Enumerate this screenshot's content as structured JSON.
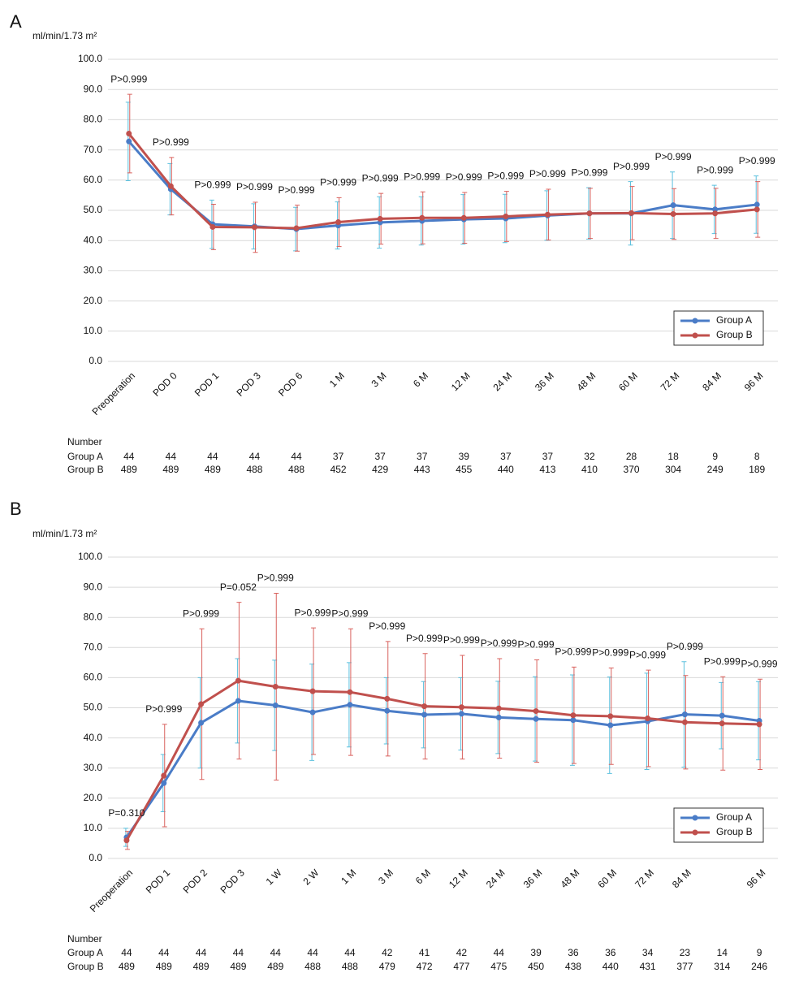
{
  "chart_data": [
    {
      "type": "line",
      "panel": "A",
      "y_label": "ml/min/1.73 m²",
      "categories": [
        "Preoperation",
        "POD 0",
        "POD 1",
        "POD 3",
        "POD 6",
        "1 M",
        "3 M",
        "6 M",
        "12 M",
        "24 M",
        "36 M",
        "48 M",
        "60 M",
        "72 M",
        "84 M",
        "96 M"
      ],
      "series": [
        {
          "name": "Group A",
          "color": "#4a7cc7",
          "error_color": "#5bc0de",
          "values": [
            72.8,
            57.0,
            45.4,
            44.7,
            43.8,
            45.0,
            46.0,
            46.5,
            47.0,
            47.3,
            48.3,
            49.0,
            49.0,
            51.7,
            50.3,
            51.9
          ],
          "errors": [
            13.0,
            8.5,
            8.0,
            7.5,
            7.2,
            7.8,
            8.5,
            8.0,
            8.2,
            8.0,
            8.2,
            8.5,
            10.5,
            11.0,
            8.0,
            9.5
          ]
        },
        {
          "name": "Group B",
          "color": "#c0504d",
          "error_color": "#d9625e",
          "values": [
            75.4,
            58.0,
            44.5,
            44.4,
            44.1,
            46.1,
            47.2,
            47.5,
            47.5,
            48.0,
            48.6,
            49.0,
            49.1,
            48.8,
            49.0,
            50.3
          ],
          "errors": [
            13.0,
            9.5,
            7.5,
            8.3,
            7.6,
            8.1,
            8.4,
            8.6,
            8.4,
            8.3,
            8.4,
            8.3,
            8.8,
            8.4,
            8.3,
            9.2
          ]
        }
      ],
      "p_values": [
        "P>0.999",
        "P>0.999",
        "P>0.999",
        "P>0.999",
        "P>0.999",
        "P>0.999",
        "P>0.999",
        "P>0.999",
        "P>0.999",
        "P>0.999",
        "P>0.999",
        "P>0.999",
        "P>0.999",
        "P>0.999",
        "P>0.999",
        "P>0.999"
      ],
      "ylim": [
        0,
        100
      ],
      "yticks": [
        {
          "value": 0,
          "label": "0.0"
        },
        {
          "value": 10,
          "label": "10.0"
        },
        {
          "value": 20,
          "label": "20.0"
        },
        {
          "value": 30,
          "label": "30.0"
        },
        {
          "value": 40,
          "label": "40.0"
        },
        {
          "value": 50,
          "label": "50.0"
        },
        {
          "value": 60,
          "label": "60.0"
        },
        {
          "value": 70,
          "label": "70.0"
        },
        {
          "value": 80,
          "label": "80.0"
        },
        {
          "value": 90,
          "label": "90.0"
        },
        {
          "value": 100,
          "label": "100.0"
        }
      ],
      "grid": true,
      "legend": "lower right",
      "table": {
        "header": "Number",
        "rows": [
          {
            "name": "Group A",
            "values": [
              44,
              44,
              44,
              44,
              44,
              37,
              37,
              37,
              39,
              37,
              37,
              32,
              28,
              18,
              9,
              8
            ]
          },
          {
            "name": "Group B",
            "values": [
              489,
              489,
              489,
              488,
              488,
              452,
              429,
              443,
              455,
              440,
              413,
              410,
              370,
              304,
              249,
              189
            ]
          }
        ]
      }
    },
    {
      "type": "line",
      "panel": "B",
      "y_label": "ml/min/1.73 m²",
      "categories": [
        "Preoperation",
        "POD 1",
        "POD 2",
        "POD 3",
        "1 W",
        "2 W",
        "1 M",
        "3 M",
        "6 M",
        "12 M",
        "24 M",
        "36 M",
        "48 M",
        "60 M",
        "72 M",
        "84 M",
        null,
        "96 M"
      ],
      "series": [
        {
          "name": "Group A",
          "color": "#4a7cc7",
          "error_color": "#5bc0de",
          "values": [
            7.0,
            25.0,
            45.0,
            52.3,
            50.8,
            48.5,
            51.0,
            49.0,
            47.7,
            48.0,
            46.8,
            46.3,
            45.9,
            44.2,
            45.5,
            47.8,
            47.4,
            45.7
          ],
          "errors": [
            3.0,
            9.5,
            15.0,
            14.0,
            15.0,
            16.0,
            14.0,
            11.0,
            11.0,
            12.0,
            12.0,
            14.0,
            15.0,
            16.0,
            16.0,
            17.5,
            11.0,
            13.0
          ]
        },
        {
          "name": "Group B",
          "color": "#c0504d",
          "error_color": "#d9625e",
          "values": [
            6.0,
            27.5,
            51.2,
            59.0,
            57.0,
            55.5,
            55.2,
            53.0,
            50.5,
            50.2,
            49.8,
            48.9,
            47.5,
            47.2,
            46.5,
            45.2,
            44.8,
            44.5
          ],
          "errors": [
            3.0,
            17.0,
            25.0,
            26.0,
            31.0,
            21.0,
            21.0,
            19.0,
            17.5,
            17.2,
            16.5,
            17.0,
            16.0,
            16.0,
            16.0,
            15.5,
            15.5,
            15.0
          ]
        }
      ],
      "p_values": [
        "P=0.310",
        "P>0.999",
        "P>0.999",
        "P=0.052",
        "P>0.999",
        "P>0.999",
        "P>0.999",
        "P>0.999",
        "P>0.999",
        "P>0.999",
        "P>0.999",
        "P>0.999",
        "P>0.999",
        "P>0.999",
        "P>0.999",
        "P>0.999",
        "P>0.999",
        "P>0.999"
      ],
      "ylim": [
        0,
        100
      ],
      "yticks": [
        {
          "value": 0,
          "label": "0.0"
        },
        {
          "value": 10,
          "label": "10.0"
        },
        {
          "value": 20,
          "label": "20.0"
        },
        {
          "value": 30,
          "label": "30.0"
        },
        {
          "value": 40,
          "label": "40.0"
        },
        {
          "value": 50,
          "label": "50.0"
        },
        {
          "value": 60,
          "label": "60.0"
        },
        {
          "value": 70,
          "label": "70.0"
        },
        {
          "value": 80,
          "label": "80.0"
        },
        {
          "value": 90,
          "label": "90.0"
        },
        {
          "value": 100,
          "label": "100.0"
        }
      ],
      "grid": true,
      "legend": "lower right",
      "table": {
        "header": "Number",
        "rows": [
          {
            "name": "Group A",
            "values": [
              44,
              44,
              44,
              44,
              44,
              44,
              44,
              42,
              41,
              42,
              44,
              39,
              36,
              36,
              34,
              23,
              14,
              9
            ]
          },
          {
            "name": "Group B",
            "values": [
              489,
              489,
              489,
              489,
              489,
              488,
              488,
              479,
              472,
              477,
              475,
              450,
              438,
              440,
              431,
              377,
              314,
              246
            ]
          }
        ]
      }
    }
  ]
}
